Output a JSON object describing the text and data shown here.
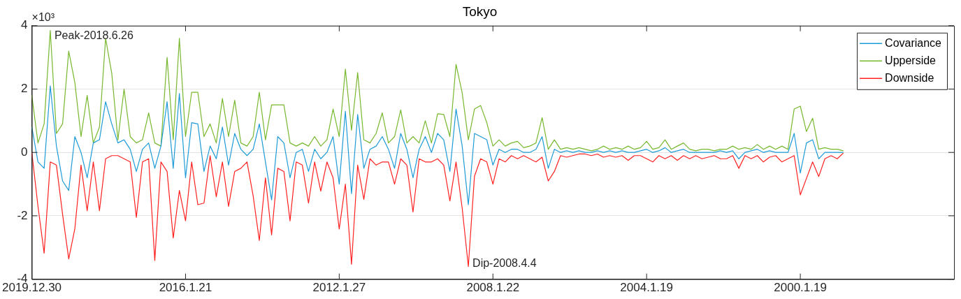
{
  "chart_data": {
    "type": "line",
    "title": "Tokyo",
    "categories": [
      "2019.12.30",
      null,
      null,
      null,
      null,
      null,
      null,
      null,
      null,
      null,
      null,
      null,
      null,
      null,
      null,
      null,
      null,
      null,
      null,
      null,
      null,
      null,
      null,
      null,
      null,
      "2016.1.21",
      null,
      null,
      null,
      null,
      null,
      null,
      null,
      null,
      null,
      null,
      null,
      null,
      null,
      null,
      null,
      null,
      null,
      null,
      null,
      null,
      null,
      null,
      null,
      null,
      "2012.1.27",
      null,
      null,
      null,
      null,
      null,
      null,
      null,
      null,
      null,
      null,
      null,
      null,
      null,
      null,
      null,
      null,
      null,
      null,
      null,
      null,
      null,
      null,
      null,
      null,
      "2008.1.22",
      null,
      null,
      null,
      null,
      null,
      null,
      null,
      null,
      null,
      null,
      null,
      null,
      null,
      null,
      null,
      null,
      null,
      null,
      null,
      null,
      null,
      null,
      null,
      null,
      "2004.1.19",
      null,
      null,
      null,
      null,
      null,
      null,
      null,
      null,
      null,
      null,
      null,
      null,
      null,
      null,
      null,
      null,
      null,
      null,
      null,
      null,
      null,
      null,
      null,
      null,
      "2000.1.19",
      null,
      null,
      null,
      null,
      null,
      null,
      null,
      null,
      null,
      null,
      null,
      null,
      null,
      null,
      null,
      null,
      null,
      null,
      null,
      null,
      null,
      null,
      null,
      null,
      null
    ],
    "ylim": [
      -4,
      4
    ],
    "yticks": [
      -4,
      -2,
      0,
      2,
      4
    ],
    "grid": "y",
    "legend": "top right",
    "annotations": [
      "×10³",
      "Peak-2018.6.26",
      "Dip-2008.4.4"
    ],
    "series": [
      {
        "name": "Covariance",
        "color": "#1e9bd7",
        "values": [
          0.8,
          -0.3,
          -0.5,
          2.1,
          0.2,
          -0.9,
          -1.2,
          0.5,
          0.0,
          -0.8,
          0.3,
          0.4,
          1.6,
          0.9,
          0.3,
          0.4,
          0.1,
          -0.6,
          0.1,
          0.3,
          -0.5,
          0.2,
          1.6,
          -0.5,
          1.86,
          -0.8,
          0.94,
          0.9,
          -0.6,
          0.2,
          -0.2,
          0.8,
          -0.4,
          0.6,
          0.1,
          -0.1,
          0.1,
          0.9,
          -0.3,
          -1.5,
          0.5,
          0.3,
          -0.8,
          0.0,
          0.1,
          -0.6,
          0.1,
          -0.2,
          0.0,
          0.5,
          -1.0,
          1.3,
          -1.3,
          1.2,
          -0.5,
          0.1,
          0.2,
          0.5,
          0.1,
          -0.5,
          0.6,
          0.1,
          -0.8,
          0.1,
          0.5,
          0.0,
          0.6,
          0.4,
          -0.6,
          1.37,
          0.2,
          -1.65,
          0.6,
          0.5,
          0.4,
          -0.4,
          0.1,
          0.0,
          0.1,
          0.1,
          0.0,
          0.0,
          0.1,
          0.5,
          -0.5,
          0.1,
          0.0,
          0.05,
          0.0,
          0.05,
          0.0,
          0.0,
          0.05,
          0.0,
          0.05,
          0.0,
          0.05,
          0.0,
          0.0,
          0.05,
          0.1,
          0.0,
          0.05,
          0.15,
          0.0,
          0.05,
          0.1,
          0.0,
          0.0,
          0.0,
          0.0,
          0.0,
          0.05,
          0.0,
          0.05,
          -0.2,
          0.0,
          0.05,
          0.1,
          0.0,
          0.05,
          0.0,
          0.0,
          0.0,
          0.6,
          -0.65,
          0.3,
          0.4,
          -0.2,
          0.0,
          0.0,
          0.0,
          0.0,
          null,
          null,
          null,
          null,
          null,
          null,
          null,
          null,
          null,
          null,
          null,
          null,
          null,
          null,
          null,
          null,
          null,
          null
        ]
      },
      {
        "name": "Upperside",
        "color": "#77b82e",
        "values": [
          1.8,
          0.3,
          0.9,
          3.85,
          0.6,
          0.9,
          3.2,
          2.2,
          0.5,
          1.8,
          0.3,
          0.8,
          3.6,
          2.5,
          0.4,
          2.0,
          0.5,
          0.3,
          0.4,
          1.25,
          0.3,
          0.2,
          3.0,
          0.4,
          3.6,
          0.5,
          1.9,
          1.9,
          0.5,
          0.9,
          0.3,
          1.7,
          0.5,
          1.65,
          0.3,
          0.2,
          0.5,
          1.9,
          0.4,
          1.5,
          1.5,
          1.5,
          0.3,
          0.2,
          0.3,
          0.2,
          0.5,
          0.2,
          0.4,
          1.37,
          0.5,
          2.63,
          0.7,
          2.52,
          0.4,
          0.3,
          0.6,
          1.25,
          0.3,
          0.5,
          1.34,
          0.3,
          0.5,
          0.3,
          1.0,
          0.3,
          1.22,
          1.2,
          0.5,
          2.78,
          1.88,
          0.4,
          1.37,
          1.48,
          0.94,
          0.2,
          0.4,
          0.2,
          0.3,
          0.35,
          0.15,
          0.2,
          0.3,
          1.1,
          0.1,
          0.4,
          0.1,
          0.15,
          0.1,
          0.15,
          0.1,
          0.05,
          0.1,
          0.2,
          0.1,
          0.15,
          0.1,
          0.2,
          0.1,
          0.15,
          0.35,
          0.1,
          0.15,
          0.4,
          0.1,
          0.2,
          0.3,
          0.1,
          0.05,
          0.1,
          0.1,
          0.05,
          0.1,
          0.1,
          0.2,
          0.1,
          0.15,
          0.1,
          0.25,
          0.1,
          0.2,
          0.1,
          0.2,
          0.1,
          1.37,
          1.46,
          0.66,
          1.08,
          0.1,
          0.15,
          0.1,
          0.1,
          0.05,
          null,
          null,
          null,
          null,
          null,
          null,
          null,
          null,
          null,
          null,
          null,
          null,
          null,
          null,
          null,
          null,
          null,
          null
        ]
      },
      {
        "name": "Downside",
        "color": "#ff2020",
        "values": [
          0,
          -1.7,
          -3.18,
          -0.3,
          -0.4,
          -1.95,
          -3.36,
          -2.4,
          -0.4,
          -1.84,
          -0.3,
          -1.84,
          -0.2,
          -0.1,
          -0.1,
          -0.2,
          -0.3,
          -2.05,
          -0.3,
          -0.2,
          -3.41,
          -0.3,
          -0.6,
          -2.7,
          -1.2,
          -2.16,
          -0.3,
          -1.65,
          -1.6,
          -0.1,
          -1.4,
          -0.3,
          -1.7,
          -0.6,
          -0.5,
          -0.3,
          -1.37,
          -2.78,
          -0.8,
          -2.6,
          -0.5,
          -0.6,
          -2.16,
          -0.3,
          -0.4,
          -1.6,
          -0.3,
          -1.22,
          -0.3,
          -0.8,
          -2.42,
          -1.0,
          -3.53,
          -0.4,
          -1.48,
          -0.2,
          -0.4,
          -0.3,
          -0.3,
          -1.0,
          -0.2,
          -0.4,
          -1.88,
          -0.2,
          -0.3,
          -0.3,
          -0.2,
          -0.4,
          -1.53,
          -0.3,
          -1.76,
          -3.6,
          -0.75,
          -0.2,
          -0.3,
          -1.0,
          -0.2,
          -0.3,
          -0.1,
          -0.2,
          -0.1,
          -0.2,
          -0.3,
          -0.15,
          -0.9,
          -0.6,
          -0.1,
          -0.15,
          -0.1,
          -0.05,
          -0.05,
          -0.1,
          -0.05,
          -0.15,
          -0.1,
          -0.15,
          -0.1,
          -0.25,
          -0.1,
          -0.1,
          -0.2,
          -0.3,
          -0.1,
          -0.2,
          -0.1,
          -0.25,
          -0.1,
          -0.2,
          -0.1,
          -0.2,
          -0.15,
          -0.1,
          -0.2,
          -0.2,
          -0.1,
          -0.5,
          -0.1,
          -0.2,
          -0.1,
          -0.3,
          -0.15,
          -0.1,
          -0.3,
          -0.2,
          -0.1,
          -1.34,
          -0.82,
          -0.3,
          -0.76,
          -0.2,
          -0.1,
          -0.2,
          -0.02,
          null,
          null,
          null,
          null,
          null,
          null,
          null,
          null,
          null,
          null,
          null,
          null,
          null,
          null,
          null,
          null,
          null,
          null
        ]
      }
    ]
  }
}
